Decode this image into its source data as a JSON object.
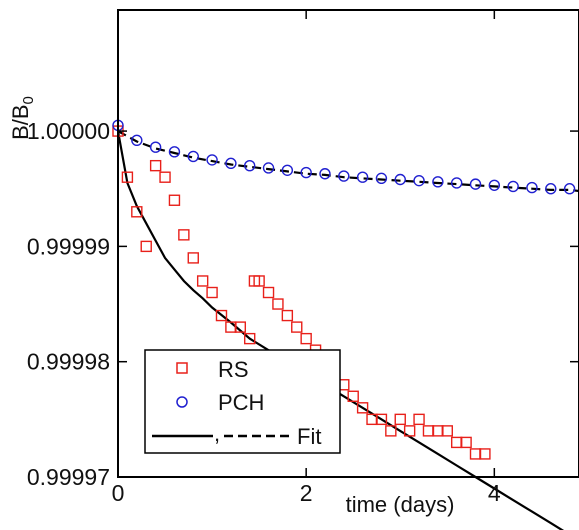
{
  "chart_data": {
    "type": "scatter",
    "title": "",
    "xlabel": "time (days)",
    "ylabel_main": "B/B",
    "ylabel_sub": "0",
    "xlim": [
      0,
      4.9
    ],
    "ylim": [
      0.99997,
      1.0000105
    ],
    "xticks": [
      0,
      2,
      4
    ],
    "xtick_labels": [
      "0",
      "2",
      "4"
    ],
    "yticks": [
      0.99997,
      0.99998,
      0.99999,
      1.0
    ],
    "ytick_labels": [
      "0.99997",
      "0.99998",
      "0.99999",
      "1.00000"
    ],
    "grid": false,
    "legend_position": "bottom-left",
    "legend": {
      "rs_label": "RS",
      "pch_label": "PCH",
      "fit_label": "Fit",
      "fit_separator": ","
    },
    "series": [
      {
        "name": "RS",
        "marker": "square",
        "color": "#e8201a",
        "x": [
          0.0,
          0.1,
          0.2,
          0.3,
          0.4,
          0.5,
          0.6,
          0.7,
          0.8,
          0.9,
          1.0,
          1.1,
          1.2,
          1.3,
          1.4,
          1.45,
          1.5,
          1.6,
          1.7,
          1.8,
          1.9,
          2.0,
          2.1,
          2.2,
          2.3,
          2.4,
          2.5,
          2.6,
          2.7,
          2.8,
          2.9,
          3.0,
          3.1,
          3.2,
          3.3,
          3.4,
          3.5,
          3.6,
          3.7,
          3.8,
          3.9
        ],
        "y": [
          1.0,
          0.999996,
          0.999993,
          0.99999,
          0.999997,
          0.999996,
          0.999994,
          0.999991,
          0.999989,
          0.999987,
          0.999986,
          0.999984,
          0.999983,
          0.999983,
          0.999982,
          0.999987,
          0.999987,
          0.999986,
          0.999985,
          0.999984,
          0.999983,
          0.999982,
          0.999981,
          0.99998,
          0.999979,
          0.999978,
          0.999977,
          0.999976,
          0.999975,
          0.999975,
          0.999974,
          0.999975,
          0.999974,
          0.999975,
          0.999974,
          0.999974,
          0.999974,
          0.999973,
          0.999973,
          0.999972,
          0.999972
        ]
      },
      {
        "name": "PCH",
        "marker": "circle",
        "color": "#2020d0",
        "x": [
          0.0,
          0.2,
          0.4,
          0.6,
          0.8,
          1.0,
          1.2,
          1.4,
          1.6,
          1.8,
          2.0,
          2.2,
          2.4,
          2.6,
          2.8,
          3.0,
          3.2,
          3.4,
          3.6,
          3.8,
          4.0,
          4.2,
          4.4,
          4.6,
          4.8
        ],
        "y": [
          1.0000005,
          0.9999992,
          0.9999986,
          0.9999982,
          0.9999978,
          0.9999975,
          0.9999972,
          0.999997,
          0.9999968,
          0.9999966,
          0.9999964,
          0.9999963,
          0.9999961,
          0.999996,
          0.9999959,
          0.9999958,
          0.9999957,
          0.9999956,
          0.9999955,
          0.9999954,
          0.9999953,
          0.9999952,
          0.9999951,
          0.999995,
          0.999995
        ]
      }
    ],
    "fits": [
      {
        "style": "solid",
        "color": "#000000",
        "x": [
          0.0,
          0.1,
          0.2,
          0.3,
          0.4,
          0.5,
          0.6,
          0.7,
          0.8,
          0.9,
          1.0,
          1.2,
          1.4,
          1.6,
          1.8,
          2.0,
          2.2,
          2.4,
          2.6,
          2.8,
          3.0,
          3.2,
          3.4,
          3.6,
          3.8,
          4.0,
          4.2,
          4.4,
          4.6,
          4.8,
          4.9
        ],
        "y": [
          1.0,
          0.9999955,
          0.9999935,
          0.999992,
          0.9999905,
          0.999989,
          0.999988,
          0.999987,
          0.9999862,
          0.9999855,
          0.9999847,
          0.9999834,
          0.999982,
          0.999981,
          0.99998,
          0.999979,
          0.999978,
          0.999977,
          0.999976,
          0.999975,
          0.999974,
          0.999973,
          0.999972,
          0.999971,
          0.99997,
          0.999969,
          0.999968,
          0.999967,
          0.999966,
          0.999965,
          0.9999645
        ]
      },
      {
        "style": "dashed",
        "color": "#000000",
        "x": [
          0.0,
          0.2,
          0.4,
          0.6,
          0.8,
          1.0,
          1.2,
          1.4,
          1.6,
          1.8,
          2.0,
          2.2,
          2.4,
          2.6,
          2.8,
          3.0,
          3.2,
          3.4,
          3.6,
          3.8,
          4.0,
          4.2,
          4.4,
          4.6,
          4.8,
          4.9
        ],
        "y": [
          1.0,
          0.9999991,
          0.9999985,
          0.9999981,
          0.9999977,
          0.9999974,
          0.9999971,
          0.9999969,
          0.9999967,
          0.9999965,
          0.9999963,
          0.9999962,
          0.999996,
          0.9999959,
          0.9999958,
          0.9999957,
          0.9999956,
          0.9999955,
          0.9999954,
          0.9999953,
          0.9999952,
          0.9999951,
          0.999995,
          0.9999949,
          0.9999949,
          0.9999948
        ]
      }
    ]
  }
}
